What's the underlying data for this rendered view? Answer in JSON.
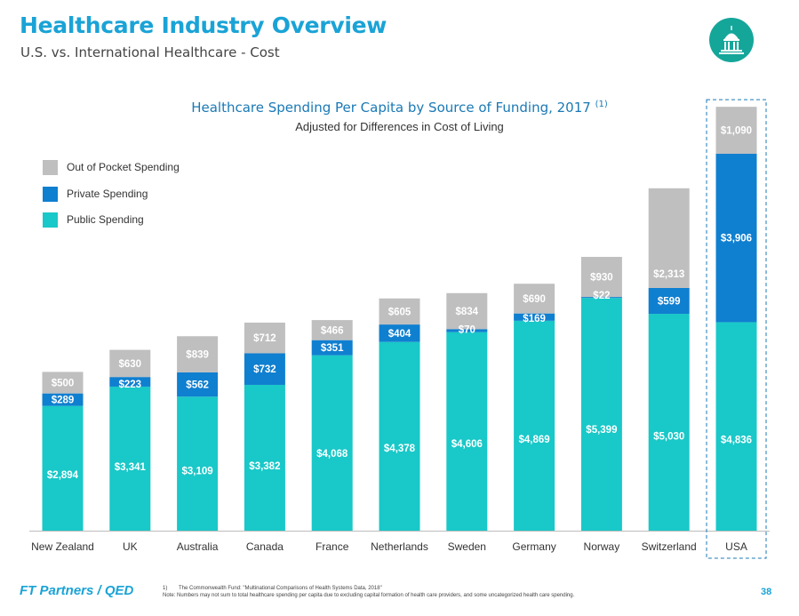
{
  "header": {
    "title": "Healthcare Industry Overview",
    "subtitle": "U.S. vs. International Healthcare - Cost",
    "logo_icon": "capitol-dome-icon",
    "logo_color": "#15a69a"
  },
  "chart_data": {
    "type": "bar",
    "stacked": true,
    "title": "Healthcare Spending Per Capita by Source of Funding, 2017",
    "title_note": "(1)",
    "subtitle": "Adjusted for Differences in Cost of Living",
    "categories": [
      "New Zealand",
      "UK",
      "Australia",
      "Canada",
      "France",
      "Netherlands",
      "Sweden",
      "Germany",
      "Norway",
      "Switzerland",
      "USA"
    ],
    "series": [
      {
        "name": "Public Spending",
        "color": "#19c8c8",
        "values": [
          2894,
          3341,
          3109,
          3382,
          4068,
          4378,
          4606,
          4869,
          5399,
          5030,
          4836
        ],
        "labels": [
          "$2,894",
          "$3,341",
          "$3,109",
          "$3,382",
          "$4,068",
          "$4,378",
          "$4,606",
          "$4,869",
          "$5,399",
          "$5,030",
          "$4,836"
        ]
      },
      {
        "name": "Private Spending",
        "color": "#0f7fd0",
        "values": [
          289,
          223,
          562,
          732,
          351,
          404,
          70,
          169,
          22,
          599,
          3906
        ],
        "labels": [
          "$289",
          "$223",
          "$562",
          "$732",
          "$351",
          "$404",
          "$70",
          "$169",
          "$22",
          "$599",
          "$3,906"
        ]
      },
      {
        "name": "Out of Pocket Spending",
        "color": "#bfbfbf",
        "values": [
          500,
          630,
          839,
          712,
          466,
          605,
          834,
          690,
          930,
          2313,
          1090
        ],
        "labels": [
          "$500",
          "$630",
          "$839",
          "$712",
          "$466",
          "$605",
          "$834",
          "$690",
          "$930",
          "$2,313",
          "$1,090"
        ]
      }
    ],
    "legend_order": [
      "Out of Pocket Spending",
      "Private Spending",
      "Public Spending"
    ],
    "legend_position": "top-left",
    "highlight_category": "USA",
    "ylim": [
      0,
      10000
    ],
    "grid": false
  },
  "footer": {
    "brand": "FT Partners / QED",
    "footnotes": [
      {
        "num": "1)",
        "text": "The Commonwealth Fund: \"Multinational Comparisons of Health Systems Data, 2018\""
      },
      {
        "num": "",
        "text": "Note: Numbers may not sum to total healthcare spending per capita due to excluding capital formation of health care providers, and some uncategorized health care spending."
      }
    ],
    "page_number": "38"
  }
}
